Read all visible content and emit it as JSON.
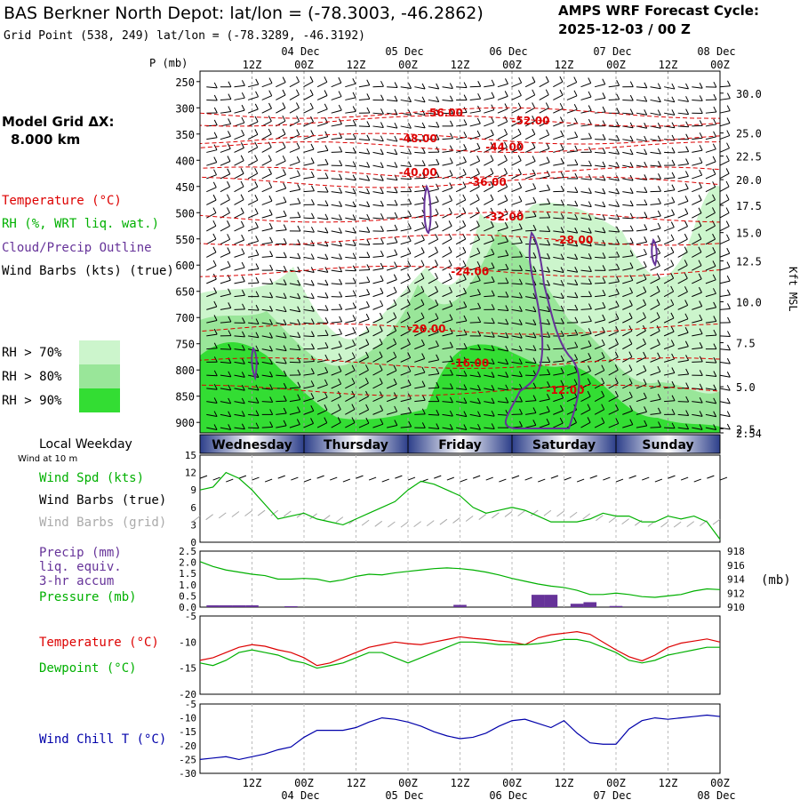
{
  "header": {
    "title": "BAS Berkner North Depot:  lat/lon = (-78.3003, -46.2862)",
    "cycle_line1": "AMPS WRF Forecast Cycle:",
    "cycle_line2": "2025-12-03 / 00  Z",
    "grid_point": "Grid Point (538, 249) lat/lon = (-78.3289, -46.3192)"
  },
  "model_grid": {
    "label": "Model Grid ΔX:",
    "value": "8.000 km"
  },
  "time_axis": {
    "hours": [
      "12Z",
      "00Z",
      "12Z",
      "00Z",
      "12Z",
      "00Z",
      "12Z",
      "00Z",
      "12Z",
      "00Z"
    ],
    "dates": [
      "04 Dec",
      "05 Dec",
      "06 Dec",
      "07 Dec",
      "08 Dec"
    ],
    "date_hours": [
      24,
      48,
      72,
      96,
      120
    ]
  },
  "weekdays": {
    "title": "Local Weekday",
    "names": [
      "Wednesday",
      "Thursday",
      "Friday",
      "Saturday",
      "Sunday"
    ]
  },
  "colors": {
    "temperature": "#dd0000",
    "rh": "#00b000",
    "cloud": "#663399",
    "wind_chill": "#0000aa",
    "rh70": "#ccf5cc",
    "rh80": "#99e699",
    "rh90": "#33dd33"
  },
  "chart_data": [
    {
      "type": "heatmap",
      "name": "profile",
      "pressure_label": "P (mb)",
      "pressure_ticks": [
        250,
        300,
        350,
        400,
        450,
        500,
        550,
        600,
        650,
        700,
        750,
        800,
        850,
        900
      ],
      "kft_ticks": [
        {
          "v": "30.0",
          "p": 272
        },
        {
          "v": "25.0",
          "p": 348
        },
        {
          "v": "22.5",
          "p": 392
        },
        {
          "v": "20.0",
          "p": 437
        },
        {
          "v": "17.5",
          "p": 486
        },
        {
          "v": "15.0",
          "p": 538
        },
        {
          "v": "12.5",
          "p": 592
        },
        {
          "v": "10.0",
          "p": 670
        },
        {
          "v": "7.5",
          "p": 748
        },
        {
          "v": "5.0",
          "p": 832
        },
        {
          "v": "2.5",
          "p": 912
        },
        {
          "v": "2.54",
          "p": 920
        }
      ],
      "kft_label": "Kft MSL",
      "legend": [
        "Temperature (°C)",
        "RH (%, WRT liq. wat.)",
        "Cloud/Precip Outline",
        "Wind Barbs (kts) (true)"
      ],
      "rh_legend": [
        "RH > 70%",
        "RH > 80%",
        "RH > 90%"
      ],
      "isotherm_labels": [
        {
          "v": "-56.00",
          "t": 56,
          "p": 310
        },
        {
          "v": "-52.00",
          "t": 76,
          "p": 325
        },
        {
          "v": "-48.00",
          "t": 50,
          "p": 359
        },
        {
          "v": "-44.00",
          "t": 70,
          "p": 375
        },
        {
          "v": "-40.00",
          "t": 50,
          "p": 423
        },
        {
          "v": "-36.00",
          "t": 66,
          "p": 442
        },
        {
          "v": "-32.00",
          "t": 70,
          "p": 508
        },
        {
          "v": "-28.00",
          "t": 86,
          "p": 552
        },
        {
          "v": "-24.00",
          "t": 62,
          "p": 612
        },
        {
          "v": "-20.00",
          "t": 52,
          "p": 722
        },
        {
          "v": "-16.00",
          "t": 62,
          "p": 787
        },
        {
          "v": "-12.00",
          "t": 84,
          "p": 839
        }
      ]
    },
    {
      "type": "line",
      "name": "wind",
      "title": "Wind at 10 m",
      "ylim": [
        0,
        15
      ],
      "yticks": [
        0,
        3,
        6,
        9,
        12,
        15
      ],
      "labels": [
        "Wind Spd (kts)",
        "Wind Barbs (true)",
        "Wind Barbs (grid)"
      ],
      "x": [
        0,
        3,
        6,
        9,
        12,
        15,
        18,
        21,
        24,
        27,
        30,
        33,
        36,
        39,
        42,
        45,
        48,
        51,
        54,
        57,
        60,
        63,
        66,
        69,
        72,
        75,
        78,
        81,
        84,
        87,
        90,
        93,
        96,
        99,
        102,
        105,
        108,
        111,
        114,
        117,
        120
      ],
      "values": [
        9,
        9.5,
        12,
        11,
        9,
        6.5,
        4,
        4.5,
        5,
        4,
        3.5,
        3,
        4,
        5,
        6,
        7,
        9,
        10.5,
        10,
        9,
        8,
        6,
        5,
        5.5,
        6,
        5.5,
        4.5,
        3.5,
        3.5,
        3.5,
        4,
        5,
        4.5,
        4.5,
        3.5,
        3.5,
        4.5,
        4,
        4.5,
        3.5,
        0.5
      ]
    },
    {
      "type": "bar",
      "name": "precip_pressure",
      "labels": [
        "Precip (mm)",
        "liq. equiv.",
        "3-hr accum",
        "Pressure (mb)"
      ],
      "ylim_precip": [
        0,
        2.5
      ],
      "yticks_precip": [
        "0.0",
        "0.5",
        "1.0",
        "1.5",
        "2.0",
        "2.5"
      ],
      "ylim_pressure": [
        910,
        918
      ],
      "yticks_pressure": [
        910,
        912,
        914,
        916,
        918
      ],
      "pressure_unit": "(mb)",
      "precip": [
        {
          "x": 3,
          "v": 0.08
        },
        {
          "x": 6,
          "v": 0.08
        },
        {
          "x": 9,
          "v": 0.08
        },
        {
          "x": 12,
          "v": 0.08
        },
        {
          "x": 21,
          "v": 0.04
        },
        {
          "x": 60,
          "v": 0.1
        },
        {
          "x": 78,
          "v": 0.55
        },
        {
          "x": 81,
          "v": 0.55
        },
        {
          "x": 87,
          "v": 0.15
        },
        {
          "x": 90,
          "v": 0.22
        },
        {
          "x": 96,
          "v": 0.05
        }
      ],
      "pressure_x": [
        0,
        3,
        6,
        9,
        12,
        15,
        18,
        21,
        24,
        27,
        30,
        33,
        36,
        39,
        42,
        45,
        48,
        51,
        54,
        57,
        60,
        63,
        66,
        69,
        72,
        75,
        78,
        81,
        84,
        87,
        90,
        93,
        96,
        99,
        102,
        105,
        108,
        111,
        114,
        117,
        120
      ],
      "pressure": [
        916.5,
        915.8,
        915.3,
        915.0,
        914.7,
        914.5,
        914.0,
        914.0,
        914.1,
        914.0,
        913.6,
        913.9,
        914.4,
        914.7,
        914.6,
        914.9,
        915.1,
        915.3,
        915.5,
        915.6,
        915.5,
        915.3,
        915.0,
        914.6,
        914.1,
        913.7,
        913.3,
        913.0,
        912.8,
        912.4,
        911.8,
        911.8,
        912.0,
        911.8,
        911.5,
        911.4,
        911.6,
        911.8,
        912.3,
        912.6,
        912.5
      ]
    },
    {
      "type": "line",
      "name": "temperature",
      "labels": [
        "Temperature (°C)",
        "Dewpoint (°C)"
      ],
      "ylim": [
        -20,
        -5
      ],
      "yticks": [
        -5,
        -10,
        -15,
        -20
      ],
      "x": [
        0,
        3,
        6,
        9,
        12,
        15,
        18,
        21,
        24,
        27,
        30,
        33,
        36,
        39,
        42,
        45,
        48,
        51,
        54,
        57,
        60,
        63,
        66,
        69,
        72,
        75,
        78,
        81,
        84,
        87,
        90,
        93,
        96,
        99,
        102,
        105,
        108,
        111,
        114,
        117,
        120
      ],
      "series": [
        {
          "name": "Temperature (°C)",
          "values": [
            -13.5,
            -13,
            -12,
            -11,
            -10.5,
            -10.8,
            -11.5,
            -12,
            -13,
            -14.5,
            -14,
            -13,
            -12,
            -11,
            -10.5,
            -10,
            -10.3,
            -10.5,
            -10,
            -9.5,
            -9,
            -9.3,
            -9.5,
            -9.8,
            -10,
            -10.5,
            -9.2,
            -8.6,
            -8.3,
            -8,
            -8.5,
            -10,
            -11.5,
            -12.8,
            -13.6,
            -12.5,
            -11,
            -10.2,
            -9.8,
            -9.4,
            -10
          ]
        },
        {
          "name": "Dewpoint (°C)",
          "values": [
            -14,
            -14.5,
            -13.5,
            -12,
            -11.5,
            -12,
            -12.5,
            -13.5,
            -14,
            -15,
            -14.5,
            -14,
            -13,
            -12,
            -12,
            -13,
            -14,
            -13,
            -12,
            -11,
            -10,
            -10,
            -10.2,
            -10.5,
            -10.5,
            -10.5,
            -10.3,
            -10,
            -9.5,
            -9.5,
            -10,
            -11,
            -12,
            -13.5,
            -14,
            -13.5,
            -12.5,
            -12,
            -11.5,
            -11,
            -11
          ]
        }
      ]
    },
    {
      "type": "line",
      "name": "wind_chill",
      "labels": [
        "Wind Chill T (°C)"
      ],
      "ylim": [
        -30,
        -5
      ],
      "yticks": [
        -5,
        -10,
        -15,
        -20,
        -25,
        -30
      ],
      "x": [
        0,
        3,
        6,
        9,
        12,
        15,
        18,
        21,
        24,
        27,
        30,
        33,
        36,
        39,
        42,
        45,
        48,
        51,
        54,
        57,
        60,
        63,
        66,
        69,
        72,
        75,
        78,
        81,
        84,
        87,
        90,
        93,
        96,
        99,
        102,
        105,
        108,
        111,
        114,
        117,
        120
      ],
      "values": [
        -25,
        -24.5,
        -24,
        -25,
        -24,
        -23,
        -21.5,
        -20.5,
        -17,
        -14.5,
        -14.5,
        -14.5,
        -13.5,
        -11.5,
        -10,
        -10.5,
        -11.5,
        -13,
        -15,
        -16.5,
        -17.5,
        -17,
        -15.5,
        -13,
        -11,
        -10.5,
        -12,
        -13.5,
        -11,
        -15.5,
        -19,
        -19.5,
        -19.5,
        -14,
        -11,
        -10,
        -10.5,
        -10,
        -9.5,
        -9,
        -9.5
      ]
    }
  ]
}
